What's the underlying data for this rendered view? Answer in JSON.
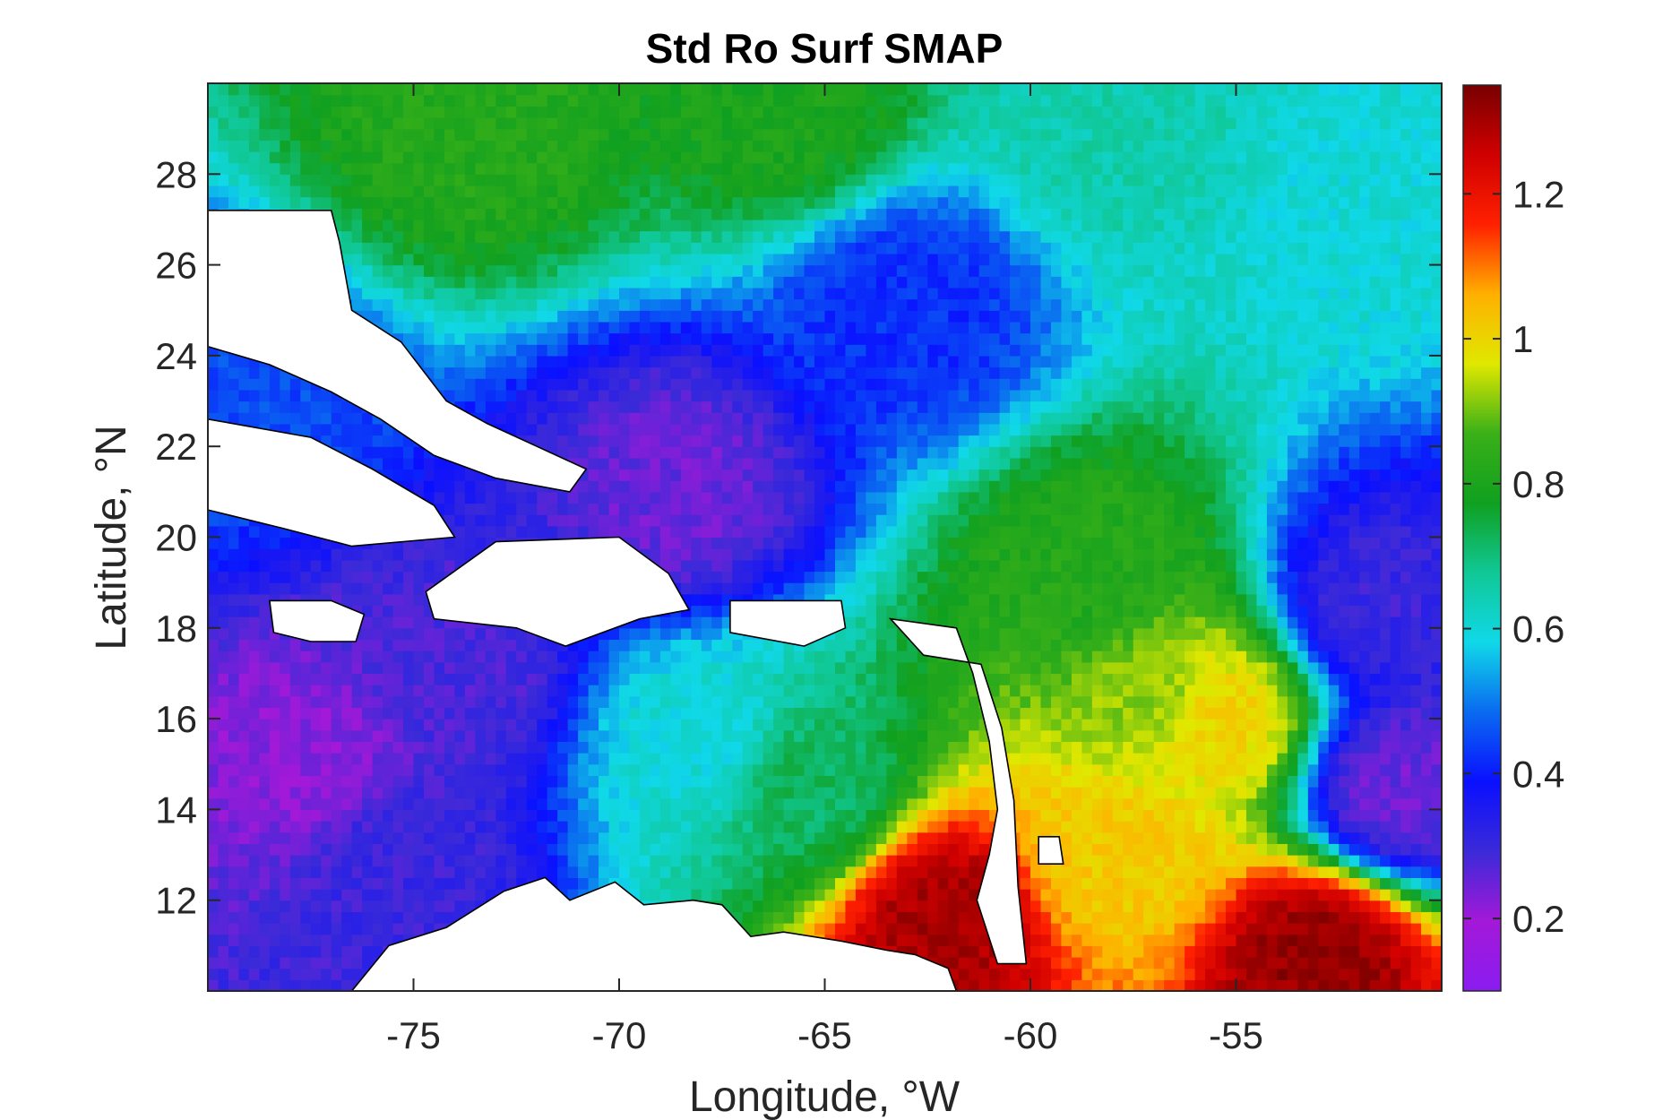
{
  "chart_data": {
    "type": "heatmap",
    "title": "Std Ro Surf SMAP",
    "xlabel": "Longitude, °W",
    "ylabel": "Latitude, °N",
    "xlim": [
      -80,
      -50
    ],
    "ylim": [
      10,
      30
    ],
    "x_ticks": [
      -75,
      -70,
      -65,
      -60,
      -55
    ],
    "x_tick_labels": [
      "-75",
      "-70",
      "-65",
      "-60",
      "-55"
    ],
    "y_ticks": [
      12,
      14,
      16,
      18,
      20,
      22,
      24,
      26,
      28
    ],
    "y_tick_labels": [
      "12",
      "14",
      "16",
      "18",
      "20",
      "22",
      "24",
      "26",
      "28"
    ],
    "colorbar": {
      "range": [
        0.1,
        1.35
      ],
      "ticks": [
        0.2,
        0.4,
        0.6,
        0.8,
        1.0,
        1.2
      ],
      "tick_labels": [
        "0.2",
        "0.4",
        "0.6",
        "0.8",
        "1",
        "1.2"
      ],
      "colors": [
        "#8a1cf0",
        "#a319d8",
        "#3b2ad8",
        "#0a10ff",
        "#0a6af0",
        "#10d8e8",
        "#10c896",
        "#10a020",
        "#3ab018",
        "#e0e800",
        "#ffb000",
        "#ff2000",
        "#d00000",
        "#780000"
      ]
    },
    "field_features": [
      {
        "lon": -79.5,
        "lat": 23.0,
        "value": 0.45
      },
      {
        "lon": -73.5,
        "lat": 29.0,
        "value": 0.82
      },
      {
        "lon": -66.0,
        "lat": 29.5,
        "value": 0.8
      },
      {
        "lon": -58.0,
        "lat": 29.0,
        "value": 0.65
      },
      {
        "lon": -52.0,
        "lat": 27.5,
        "value": 0.6
      },
      {
        "lon": -63.0,
        "lat": 25.0,
        "value": 0.42
      },
      {
        "lon": -68.5,
        "lat": 21.0,
        "value": 0.25
      },
      {
        "lon": -77.5,
        "lat": 15.0,
        "value": 0.22
      },
      {
        "lon": -75.5,
        "lat": 13.0,
        "value": 0.3
      },
      {
        "lon": -74.0,
        "lat": 17.0,
        "value": 0.28
      },
      {
        "lon": -68.0,
        "lat": 15.5,
        "value": 0.6
      },
      {
        "lon": -65.5,
        "lat": 14.5,
        "value": 0.72
      },
      {
        "lon": -58.5,
        "lat": 19.0,
        "value": 0.82
      },
      {
        "lon": -57.0,
        "lat": 16.5,
        "value": 0.92
      },
      {
        "lon": -55.5,
        "lat": 16.0,
        "value": 1.0
      },
      {
        "lon": -58.0,
        "lat": 13.0,
        "value": 1.02
      },
      {
        "lon": -62.0,
        "lat": 11.5,
        "value": 1.3
      },
      {
        "lon": -53.0,
        "lat": 10.7,
        "value": 1.32
      },
      {
        "lon": -51.0,
        "lat": 14.5,
        "value": 0.25
      },
      {
        "lon": -51.5,
        "lat": 18.5,
        "value": 0.3
      }
    ],
    "land_masses": [
      "Bahamas",
      "Cuba",
      "Jamaica",
      "Hispaniola",
      "Puerto Rico",
      "Lesser Antilles",
      "Barbados",
      "South America coast"
    ],
    "grid": false
  }
}
